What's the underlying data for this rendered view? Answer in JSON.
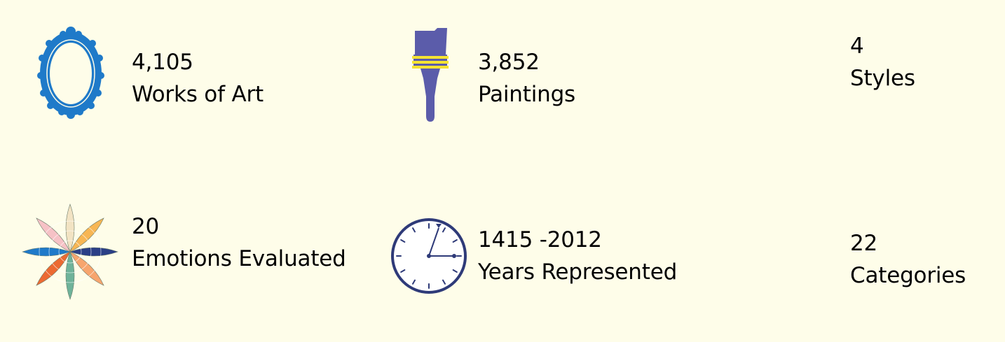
{
  "stats": [
    {
      "value": "4,105",
      "label": "Works of Art",
      "icon": "ornate-frame-icon",
      "color": "#1f7ac9"
    },
    {
      "value": "3,852",
      "label": "Paintings",
      "icon": "paintbrush-icon",
      "color": "#5b5caa",
      "band_color": "#f4e332"
    },
    {
      "value": "4",
      "label": "Styles"
    },
    {
      "value": "20",
      "label": "Emotions Evaluated",
      "icon": "emotion-wheel-icon"
    },
    {
      "value": "1415 -2012",
      "label": "Years Represented",
      "icon": "clock-icon",
      "color": "#2e3a78"
    },
    {
      "value": "22",
      "label": "Categories"
    }
  ]
}
